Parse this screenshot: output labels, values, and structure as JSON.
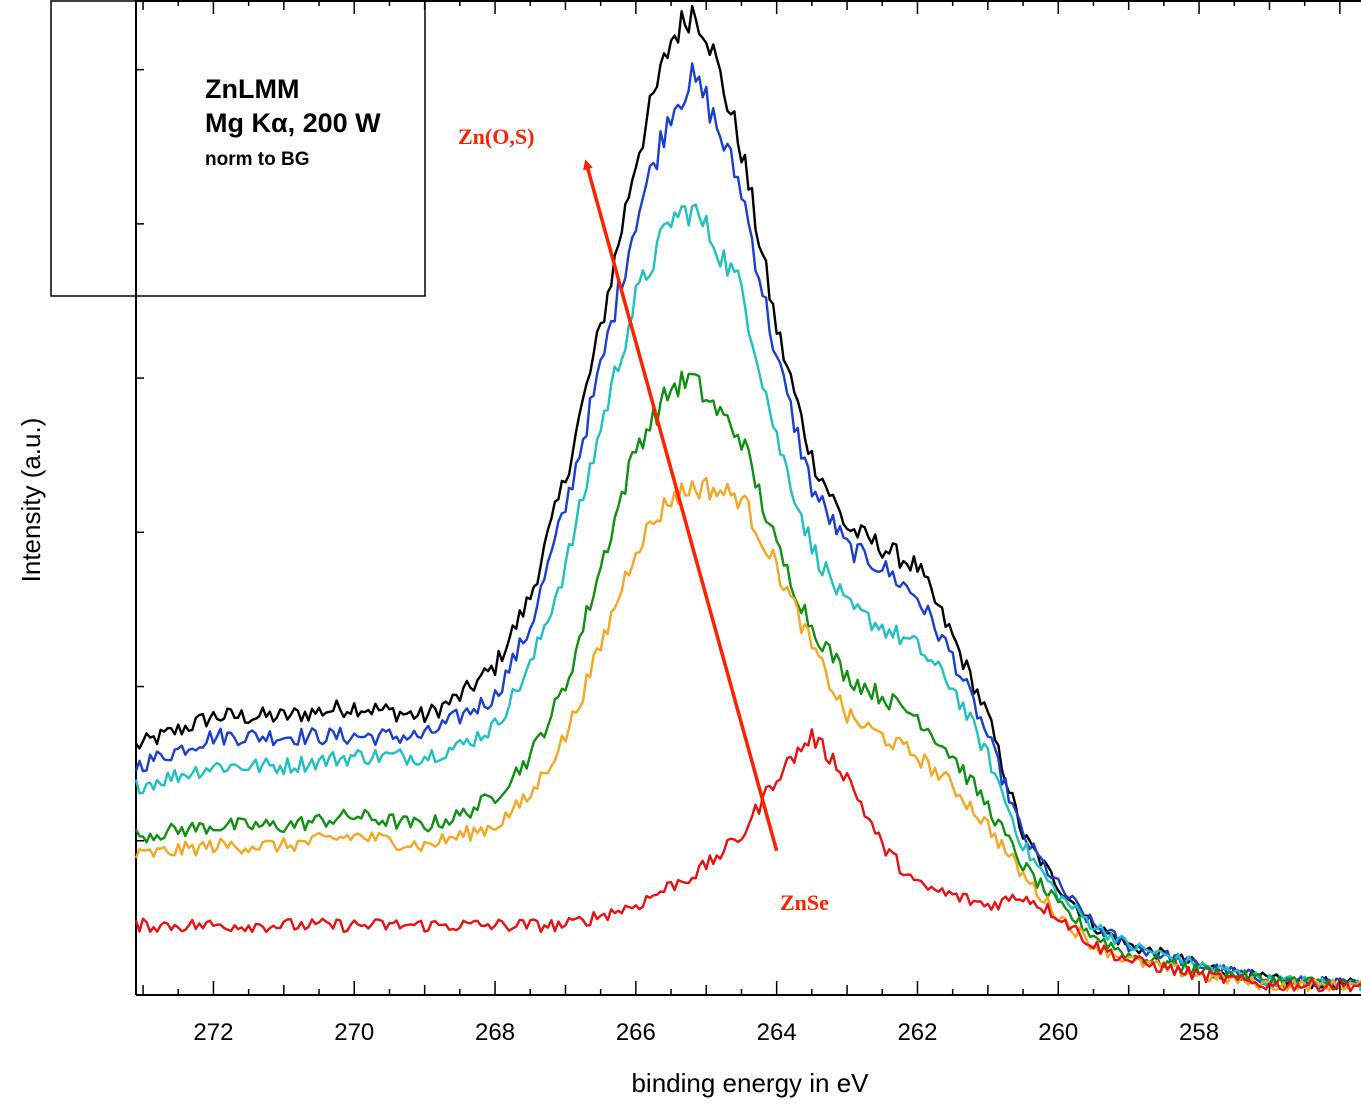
{
  "chart_data": {
    "type": "line",
    "xlabel": "binding energy in eV",
    "ylabel": "Intensity (a.u.)",
    "xlim": [
      273.1,
      255.7
    ],
    "ylim": [
      0,
      1.0
    ],
    "x_reversed": true,
    "x_ticks": [
      272,
      270,
      268,
      266,
      264,
      262,
      260,
      258
    ],
    "y_tick_labels_shown": false,
    "legend_text": {
      "line1": "ZnLMM",
      "line2": "Mg Kα, 200 W",
      "line3": "norm to BG"
    },
    "annotations": {
      "top": "Zn(O,S)",
      "bottom": "ZnSe",
      "color": "#ff2000",
      "arrow": {
        "from_x": 264.0,
        "from_y": 0.145,
        "to_x": 266.7,
        "to_y": 0.835
      }
    },
    "x": [
      273.1,
      272.0,
      271.0,
      270.0,
      269.0,
      268.5,
      268.0,
      267.5,
      267.0,
      266.5,
      266.0,
      265.5,
      265.2,
      265.0,
      264.5,
      264.0,
      263.5,
      263.0,
      262.5,
      262.0,
      261.5,
      261.0,
      260.5,
      260.0,
      259.5,
      259.0,
      258.0,
      257.0,
      255.7
    ],
    "series": [
      {
        "color": "#000000",
        "values": [
          0.25,
          0.28,
          0.28,
          0.29,
          0.28,
          0.3,
          0.33,
          0.4,
          0.52,
          0.67,
          0.84,
          0.96,
          0.99,
          0.97,
          0.85,
          0.67,
          0.54,
          0.47,
          0.45,
          0.43,
          0.36,
          0.28,
          0.16,
          0.11,
          0.07,
          0.05,
          0.03,
          0.015,
          0.01
        ]
      },
      {
        "color": "#1a3fcc",
        "values": [
          0.23,
          0.26,
          0.26,
          0.26,
          0.26,
          0.28,
          0.3,
          0.37,
          0.49,
          0.63,
          0.78,
          0.89,
          0.92,
          0.9,
          0.81,
          0.64,
          0.51,
          0.45,
          0.43,
          0.4,
          0.34,
          0.26,
          0.16,
          0.11,
          0.07,
          0.05,
          0.03,
          0.015,
          0.01
        ]
      },
      {
        "color": "#20c0c0",
        "values": [
          0.21,
          0.23,
          0.23,
          0.24,
          0.24,
          0.25,
          0.27,
          0.33,
          0.43,
          0.57,
          0.7,
          0.78,
          0.79,
          0.77,
          0.71,
          0.56,
          0.45,
          0.39,
          0.37,
          0.35,
          0.31,
          0.24,
          0.15,
          0.1,
          0.07,
          0.05,
          0.03,
          0.015,
          0.01
        ]
      },
      {
        "color": "#109010",
        "values": [
          0.16,
          0.17,
          0.17,
          0.18,
          0.17,
          0.18,
          0.2,
          0.24,
          0.31,
          0.43,
          0.55,
          0.61,
          0.62,
          0.6,
          0.56,
          0.45,
          0.37,
          0.32,
          0.3,
          0.28,
          0.24,
          0.19,
          0.13,
          0.09,
          0.06,
          0.04,
          0.025,
          0.015,
          0.01
        ]
      },
      {
        "color": "#f5a623",
        "values": [
          0.14,
          0.15,
          0.15,
          0.16,
          0.15,
          0.16,
          0.17,
          0.2,
          0.26,
          0.35,
          0.45,
          0.5,
          0.51,
          0.51,
          0.5,
          0.43,
          0.35,
          0.28,
          0.26,
          0.24,
          0.21,
          0.17,
          0.12,
          0.08,
          0.05,
          0.035,
          0.02,
          0.01,
          0.01
        ]
      },
      {
        "color": "#e81010",
        "values": [
          0.07,
          0.07,
          0.07,
          0.07,
          0.07,
          0.07,
          0.07,
          0.07,
          0.07,
          0.08,
          0.09,
          0.11,
          0.12,
          0.13,
          0.16,
          0.22,
          0.26,
          0.22,
          0.15,
          0.11,
          0.1,
          0.09,
          0.1,
          0.08,
          0.05,
          0.035,
          0.02,
          0.01,
          0.01
        ]
      }
    ]
  }
}
